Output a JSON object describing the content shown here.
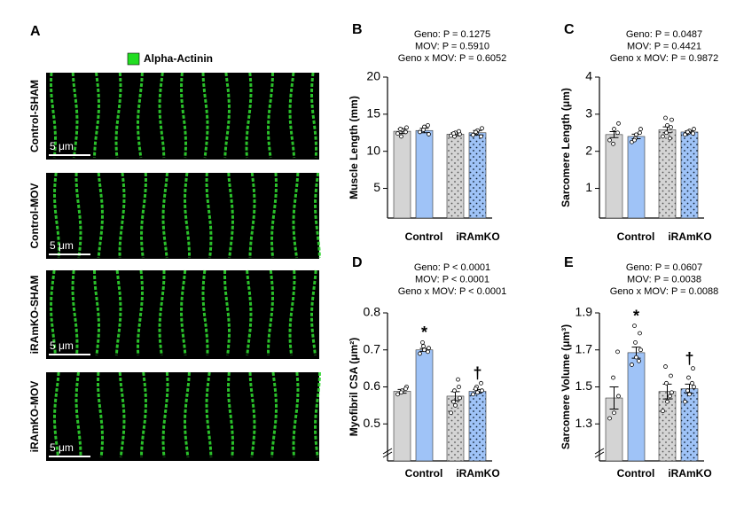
{
  "figure_a": {
    "panel": "A",
    "legend": "Alpha-Actinin",
    "legend_color": "#22dd22",
    "rows": [
      "Control-SHAM",
      "Control-MOV",
      "iRAmKO-SHAM",
      "iRAmKO-MOV"
    ],
    "scale_bar": "5 μm"
  },
  "chart_data": [
    {
      "type": "bar",
      "panel": "B",
      "title": [
        "Geno: P = 0.1275",
        "MOV: P = 0.5910",
        "Geno x  MOV: P = 0.6052"
      ],
      "ylabel": "Muscle Length (mm)",
      "groups": [
        "Control",
        "iRAmKO"
      ],
      "values": [
        12.7,
        12.8,
        12.3,
        12.5
      ],
      "errors": [
        0.3,
        0.3,
        0.2,
        0.3
      ],
      "points": [
        [
          12.4,
          12.9,
          13.2,
          12.0,
          12.6,
          13.0
        ],
        [
          12.6,
          13.3,
          12.3,
          12.9,
          13.5
        ],
        [
          12.1,
          12.5,
          12.3,
          12.0,
          12.7,
          12.4
        ],
        [
          12.2,
          12.8,
          13.1,
          12.5,
          12.0,
          12.6
        ]
      ],
      "colors": [
        "#d4d4d4",
        "#9fc3f7",
        "#d4d4d4",
        "#9fc3f7"
      ],
      "dotted": [
        false,
        false,
        true,
        true
      ],
      "ylim": [
        1,
        20
      ],
      "yticks": [
        5,
        10,
        15,
        20
      ],
      "broken_axis": false
    },
    {
      "type": "bar",
      "panel": "C",
      "title": [
        "Geno: P = 0.0487",
        "MOV: P = 0.4421",
        "Geno x  MOV: P = 0.9872"
      ],
      "ylabel": "Sarcomere Length (μm)",
      "groups": [
        "Control",
        "iRAmKO"
      ],
      "values": [
        2.45,
        2.4,
        2.58,
        2.52
      ],
      "errors": [
        0.08,
        0.06,
        0.08,
        0.03
      ],
      "points": [
        [
          2.3,
          2.6,
          2.75,
          2.2,
          2.5
        ],
        [
          2.25,
          2.45,
          2.6,
          2.35,
          2.5,
          2.3
        ],
        [
          2.4,
          2.7,
          2.85,
          2.5,
          2.65,
          2.9,
          2.35
        ],
        [
          2.45,
          2.55,
          2.6,
          2.5,
          2.48,
          2.52
        ]
      ],
      "colors": [
        "#d4d4d4",
        "#9fc3f7",
        "#d4d4d4",
        "#9fc3f7"
      ],
      "dotted": [
        false,
        false,
        true,
        true
      ],
      "ylim": [
        0.2,
        4
      ],
      "yticks": [
        1,
        2,
        3,
        4
      ],
      "broken_axis": false
    },
    {
      "type": "bar",
      "panel": "D",
      "title": [
        "Geno: P < 0.0001",
        "MOV: P < 0.0001",
        "Geno x  MOV: P < 0.0001"
      ],
      "ylabel": "Myofibril CSA (μm²)",
      "groups": [
        "Control",
        "iRAmKO"
      ],
      "values": [
        0.588,
        0.7,
        0.575,
        0.588
      ],
      "errors": [
        0.005,
        0.004,
        0.012,
        0.005
      ],
      "points": [
        [
          0.58,
          0.59,
          0.6,
          0.585,
          0.595
        ],
        [
          0.69,
          0.7,
          0.705,
          0.71,
          0.695,
          0.72
        ],
        [
          0.53,
          0.55,
          0.57,
          0.59,
          0.6,
          0.56,
          0.62
        ],
        [
          0.58,
          0.585,
          0.59,
          0.6,
          0.61,
          0.595
        ]
      ],
      "colors": [
        "#d4d4d4",
        "#9fc3f7",
        "#d4d4d4",
        "#9fc3f7"
      ],
      "dotted": [
        false,
        false,
        true,
        true
      ],
      "markers": [
        null,
        "*",
        null,
        "†"
      ],
      "ylim": [
        0.4,
        0.8
      ],
      "yticks": [
        0.5,
        0.6,
        0.7,
        0.8
      ],
      "broken_axis": true
    },
    {
      "type": "bar",
      "panel": "E",
      "title": [
        "Geno: P = 0.0607",
        "MOV: P = 0.0038",
        "Geno x  MOV: P = 0.0088"
      ],
      "ylabel": "Sarcomere Volume (μm³)",
      "groups": [
        "Control",
        "iRAmKO"
      ],
      "values": [
        1.44,
        1.685,
        1.475,
        1.49
      ],
      "errors": [
        0.06,
        0.03,
        0.04,
        0.025
      ],
      "points": [
        [
          1.33,
          1.36,
          1.45,
          1.55,
          1.69
        ],
        [
          1.62,
          1.66,
          1.7,
          1.74,
          1.79,
          1.83,
          1.64
        ],
        [
          1.37,
          1.42,
          1.47,
          1.52,
          1.56,
          1.61,
          1.45
        ],
        [
          1.42,
          1.46,
          1.5,
          1.55,
          1.6,
          1.48,
          1.52
        ]
      ],
      "colors": [
        "#d4d4d4",
        "#9fc3f7",
        "#d4d4d4",
        "#9fc3f7"
      ],
      "dotted": [
        false,
        false,
        true,
        true
      ],
      "markers": [
        null,
        "*",
        null,
        "†"
      ],
      "ylim": [
        1.1,
        1.9
      ],
      "yticks": [
        1.3,
        1.5,
        1.7,
        1.9
      ],
      "broken_axis": true
    }
  ]
}
